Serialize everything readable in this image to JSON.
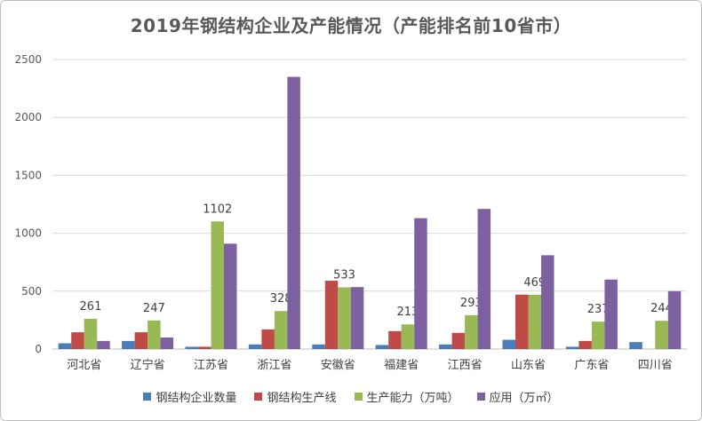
{
  "chart_data": {
    "type": "bar",
    "title": "2019年钢结构企业及产能情况（产能排名前10省市）",
    "categories": [
      "河北省",
      "辽宁省",
      "江苏省",
      "浙江省",
      "安徽省",
      "福建省",
      "江西省",
      "山东省",
      "广东省",
      "四川省"
    ],
    "ylim": [
      0,
      2500
    ],
    "yticks": [
      0,
      500,
      1000,
      1500,
      2000,
      2500
    ],
    "grid": true,
    "legend_position": "bottom",
    "series": [
      {
        "name": "钢结构企业数量",
        "color": "#4a7ebb",
        "values": [
          50,
          70,
          20,
          40,
          40,
          35,
          40,
          80,
          20,
          60
        ]
      },
      {
        "name": "钢结构生产线",
        "color": "#be4b48",
        "values": [
          145,
          145,
          20,
          170,
          590,
          155,
          140,
          470,
          70,
          0
        ]
      },
      {
        "name": "生产能力（万吨）",
        "color": "#98b954",
        "values": [
          261,
          247,
          1102,
          328,
          533,
          213,
          293,
          469,
          237,
          244
        ],
        "labels": [
          "261",
          "247",
          "1102",
          "328",
          "533",
          "213",
          "293",
          "469",
          "237",
          "244"
        ]
      },
      {
        "name": "应用（万㎡）",
        "color": "#7d60a0",
        "values": [
          70,
          100,
          910,
          2350,
          535,
          1130,
          1210,
          810,
          600,
          500
        ]
      }
    ]
  }
}
